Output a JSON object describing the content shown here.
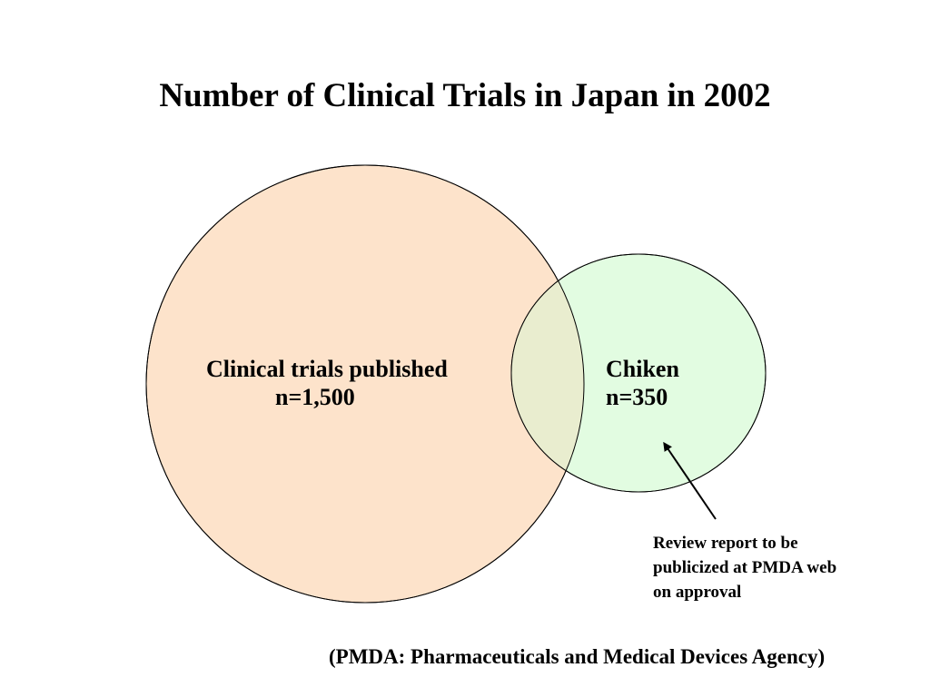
{
  "title": "Number of Clinical Trials in Japan in 2002",
  "sets": {
    "published": {
      "label": "Clinical trials published",
      "count": "n=1,500",
      "fill": "#FDE3CB"
    },
    "chiken": {
      "label": "Chiken",
      "count": "n=350",
      "fill": "#E2FCE1"
    },
    "overlap_fill": "#E9EDCF"
  },
  "annotation": {
    "lines": [
      "Review report to be",
      "publicized  at PMDA web",
      "on approval"
    ]
  },
  "footnote": "(PMDA: Pharmaceuticals and Medical Devices Agency)"
}
